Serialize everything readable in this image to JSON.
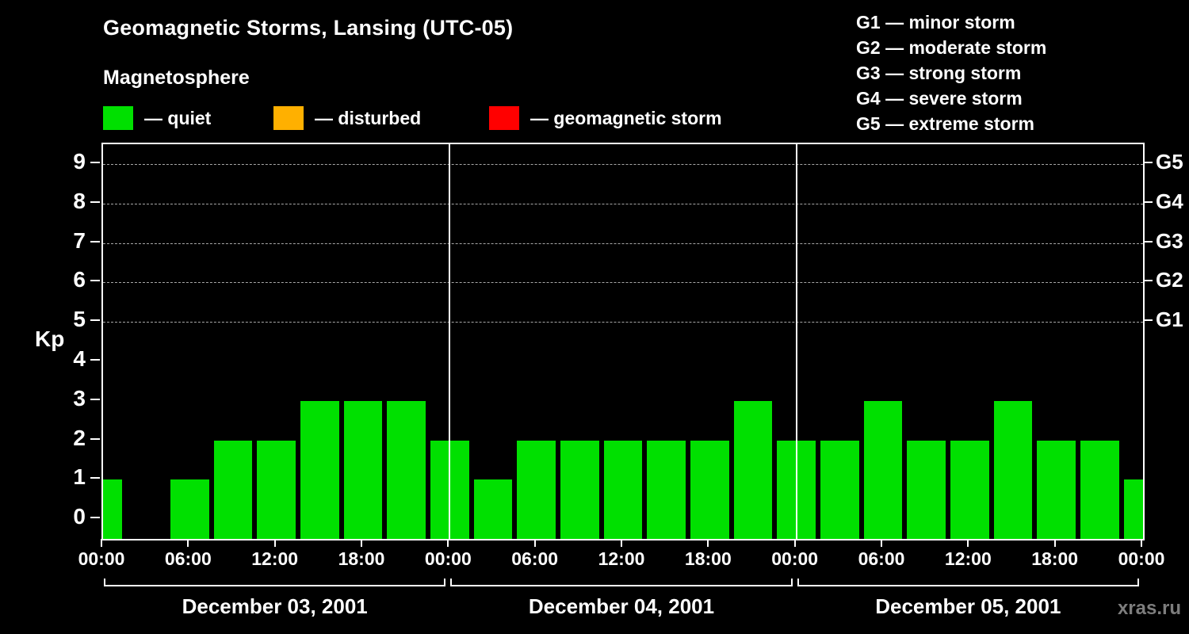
{
  "header": {
    "title": "Geomagnetic Storms, Lansing (UTC-05)",
    "subtitle": "Magnetosphere"
  },
  "legend": {
    "items": [
      {
        "name": "quiet",
        "label": "— quiet",
        "color": "#00e000"
      },
      {
        "name": "disturbed",
        "label": "— disturbed",
        "color": "#ffb000"
      },
      {
        "name": "geomagnetic-storm",
        "label": "— geomagnetic storm",
        "color": "#ff0000"
      }
    ]
  },
  "g_scale_legend": {
    "items": [
      {
        "label": "G1 — minor storm"
      },
      {
        "label": "G2 — moderate storm"
      },
      {
        "label": "G3 — strong storm"
      },
      {
        "label": "G4 — severe storm"
      },
      {
        "label": "G5 — extreme storm"
      }
    ]
  },
  "watermark": "xras.ru",
  "chart_data": {
    "type": "bar",
    "title": "Geomagnetic Storms, Lansing (UTC-05)",
    "ylabel": "Kp",
    "y_ticks": [
      0,
      1,
      2,
      3,
      4,
      5,
      6,
      7,
      8,
      9
    ],
    "y_range": [
      -0.5,
      9.5
    ],
    "grid_levels_kp": [
      5,
      6,
      7,
      8,
      9
    ],
    "right_axis_labels": [
      {
        "label": "G5",
        "kp": 9
      },
      {
        "label": "G4",
        "kp": 8
      },
      {
        "label": "G3",
        "kp": 7
      },
      {
        "label": "G2",
        "kp": 6
      },
      {
        "label": "G1",
        "kp": 5
      }
    ],
    "x_tick_labels": [
      "00:00",
      "06:00",
      "12:00",
      "18:00",
      "00:00",
      "06:00",
      "12:00",
      "18:00",
      "00:00",
      "06:00",
      "12:00",
      "18:00",
      "00:00"
    ],
    "day_labels": [
      "December 03, 2001",
      "December 04, 2001",
      "December 05, 2001"
    ],
    "interval_hours": 3,
    "total_hours": 72,
    "bar_color": "#00e000",
    "kp_hours": [
      0,
      3,
      6,
      9,
      12,
      15,
      18,
      21,
      24,
      27,
      30,
      33,
      36,
      39,
      42,
      45,
      48,
      51,
      54,
      57,
      60,
      63,
      66,
      69,
      72
    ],
    "kp_values": [
      1,
      0,
      1,
      2,
      2,
      3,
      3,
      3,
      2,
      1,
      2,
      2,
      2,
      2,
      2,
      3,
      2,
      2,
      3,
      2,
      2,
      3,
      2,
      2,
      1
    ]
  }
}
